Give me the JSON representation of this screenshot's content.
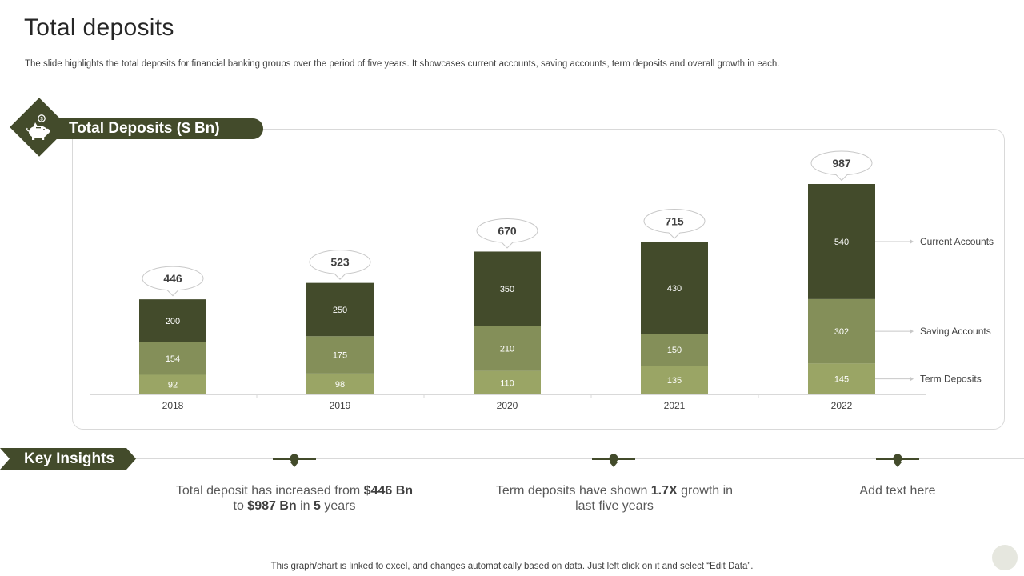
{
  "slide": {
    "title": "Total deposits",
    "subtitle": "The slide highlights the total deposits for financial banking groups over the period of five years. It showcases current accounts, saving accounts, term deposits and overall growth in each.",
    "footer_note": "This graph/chart is linked to excel,  and changes automatically based on data. Just left click on it and select “Edit Data”."
  },
  "chart_header": {
    "title": "Total Deposits ($ Bn)",
    "icon": "piggy-bank-icon"
  },
  "chart_data": {
    "type": "bar",
    "stacked": true,
    "title": "Total Deposits ($ Bn)",
    "categories": [
      "2018",
      "2019",
      "2020",
      "2021",
      "2022"
    ],
    "series": [
      {
        "name": "Term Deposits",
        "values": [
          92,
          98,
          110,
          135,
          145
        ],
        "color": "#9aa565"
      },
      {
        "name": "Saving Accounts",
        "values": [
          154,
          175,
          210,
          150,
          302
        ],
        "color": "#848f59"
      },
      {
        "name": "Current Accounts",
        "values": [
          200,
          250,
          350,
          430,
          540
        ],
        "color": "#434b2b"
      }
    ],
    "totals": [
      446,
      523,
      670,
      715,
      987
    ],
    "ylim": [
      0,
      987
    ],
    "legend_position": "right, inline labels",
    "grid": false
  },
  "insights": {
    "title": "Key Insights",
    "items": [
      {
        "parts": [
          {
            "text": "Total deposit has increased from ",
            "bold": false
          },
          {
            "text": "$446 Bn",
            "bold": true
          },
          {
            "text": " to ",
            "bold": false
          },
          {
            "text": "$987 Bn",
            "bold": true
          },
          {
            "text": " in ",
            "bold": false
          },
          {
            "text": "5",
            "bold": true
          },
          {
            "text": " years",
            "bold": false
          }
        ]
      },
      {
        "parts": [
          {
            "text": "Term deposits have shown ",
            "bold": false
          },
          {
            "text": "1.7X",
            "bold": true
          },
          {
            "text": " growth  in last five years",
            "bold": false
          }
        ]
      },
      {
        "parts": [
          {
            "text": "Add text here",
            "bold": false
          }
        ]
      }
    ]
  },
  "colors": {
    "accent_dark": "#434b2b",
    "accent_mid": "#848f59",
    "accent_light": "#9aa565"
  }
}
